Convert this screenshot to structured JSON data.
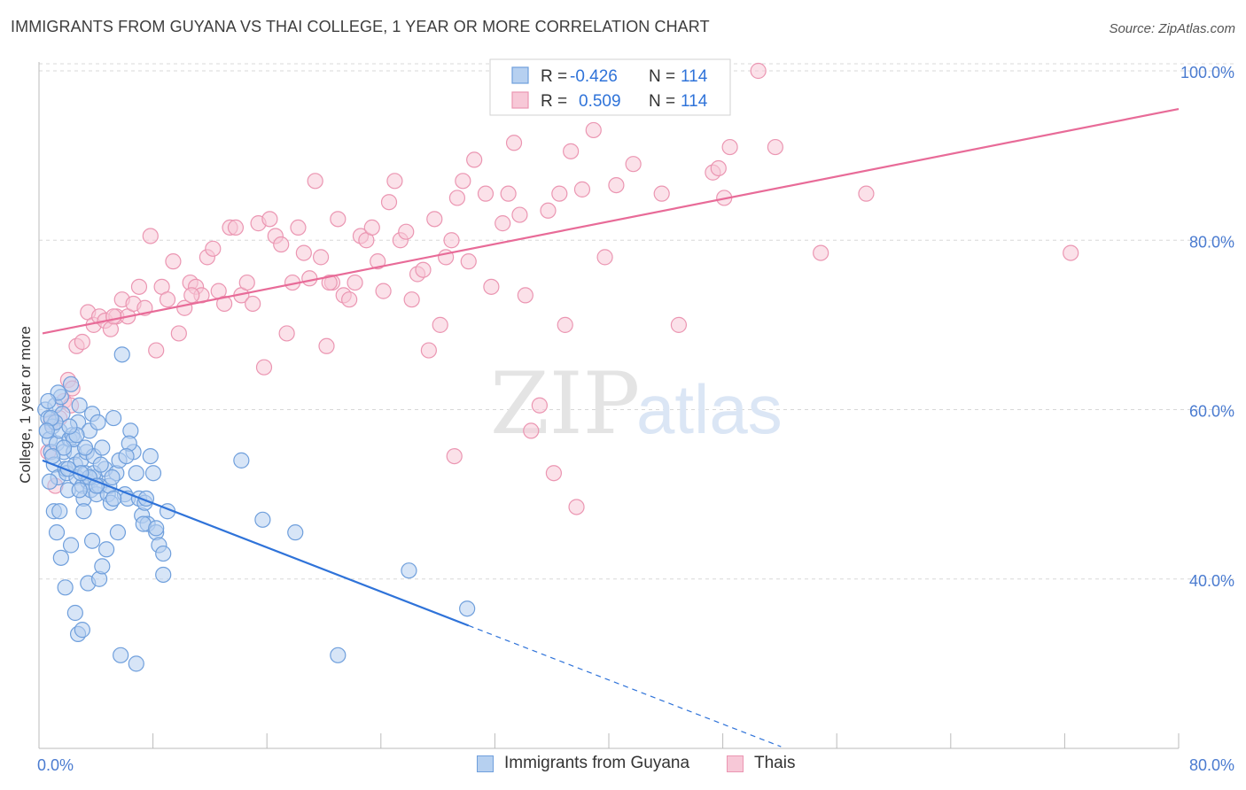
{
  "title": "IMMIGRANTS FROM GUYANA VS THAI COLLEGE, 1 YEAR OR MORE CORRELATION CHART",
  "source": "Source: ZipAtlas.com",
  "watermark": {
    "zip": "ZIP",
    "atlas": "atlas"
  },
  "colors": {
    "blue_fill": "#b6d0f0",
    "blue_stroke": "#6f9fdc",
    "blue_line": "#2f73d9",
    "pink_fill": "#f7c8d7",
    "pink_stroke": "#eb96b2",
    "pink_line": "#e86b98",
    "axis_text": "#4a7bd0",
    "grid": "#d8d8d8"
  },
  "legend": {
    "rows": [
      {
        "r_label": "R =",
        "r_value": "-0.426",
        "n_label": "N =",
        "n_value": "114"
      },
      {
        "r_label": "R =",
        "r_value": "0.509",
        "n_label": "N =",
        "n_value": "114"
      }
    ]
  },
  "bottom_legend": [
    {
      "label": "Immigrants from Guyana"
    },
    {
      "label": "Thais"
    }
  ],
  "chart_data": {
    "type": "scatter",
    "xlabel": "",
    "ylabel": "College, 1 year or more",
    "xlim": [
      0,
      80
    ],
    "ylim": [
      20,
      103
    ],
    "x_tick_labels": [
      "0.0%",
      "80.0%"
    ],
    "y_ticks": [
      40,
      60,
      80,
      100
    ],
    "y_tick_labels": [
      "40.0%",
      "60.0%",
      "80.0%",
      "100.0%"
    ],
    "grid": true,
    "legend_position": "top-center",
    "series": [
      {
        "name": "Immigrants from Guyana",
        "color": "blue",
        "trend": {
          "x0": 0,
          "y0": 54.0,
          "x1": 30,
          "y1": 34.5,
          "dash_to_x": 52
        },
        "points": [
          [
            0.2,
            60.0
          ],
          [
            0.3,
            57.5
          ],
          [
            0.4,
            59.0
          ],
          [
            0.5,
            56.5
          ],
          [
            0.6,
            55.0
          ],
          [
            0.7,
            58.0
          ],
          [
            0.8,
            53.5
          ],
          [
            0.9,
            60.5
          ],
          [
            1.0,
            56.0
          ],
          [
            1.1,
            52.0
          ],
          [
            0.5,
            51.5
          ],
          [
            0.8,
            48.0
          ],
          [
            1.2,
            57.5
          ],
          [
            1.3,
            61.5
          ],
          [
            1.4,
            59.5
          ],
          [
            1.5,
            55.0
          ],
          [
            1.6,
            53.0
          ],
          [
            1.7,
            52.5
          ],
          [
            1.8,
            50.5
          ],
          [
            1.9,
            56.5
          ],
          [
            2.0,
            63.0
          ],
          [
            2.1,
            57.0
          ],
          [
            2.2,
            55.0
          ],
          [
            2.3,
            53.5
          ],
          [
            2.4,
            52.0
          ],
          [
            2.5,
            58.5
          ],
          [
            2.6,
            60.5
          ],
          [
            2.7,
            54.0
          ],
          [
            2.8,
            51.0
          ],
          [
            2.9,
            49.5
          ],
          [
            3.0,
            52.5
          ],
          [
            3.1,
            55.0
          ],
          [
            3.2,
            51.5
          ],
          [
            3.3,
            57.5
          ],
          [
            3.4,
            50.5
          ],
          [
            3.5,
            59.5
          ],
          [
            3.6,
            54.5
          ],
          [
            3.7,
            52.0
          ],
          [
            3.8,
            50.0
          ],
          [
            3.9,
            58.5
          ],
          [
            4.0,
            51.0
          ],
          [
            4.2,
            55.5
          ],
          [
            4.4,
            53.0
          ],
          [
            4.6,
            50.0
          ],
          [
            4.8,
            49.0
          ],
          [
            5.0,
            59.0
          ],
          [
            5.2,
            52.5
          ],
          [
            5.4,
            54.0
          ],
          [
            5.6,
            66.5
          ],
          [
            5.8,
            50.0
          ],
          [
            6.0,
            49.5
          ],
          [
            6.2,
            57.5
          ],
          [
            6.4,
            55.0
          ],
          [
            6.6,
            52.5
          ],
          [
            6.8,
            49.5
          ],
          [
            7.0,
            47.5
          ],
          [
            7.2,
            49.0
          ],
          [
            7.4,
            46.5
          ],
          [
            7.6,
            54.5
          ],
          [
            7.8,
            52.5
          ],
          [
            8.0,
            45.5
          ],
          [
            8.2,
            44.0
          ],
          [
            8.5,
            43.0
          ],
          [
            8.8,
            48.0
          ],
          [
            1.0,
            45.5
          ],
          [
            1.3,
            42.5
          ],
          [
            1.6,
            39.0
          ],
          [
            2.0,
            44.0
          ],
          [
            2.3,
            36.0
          ],
          [
            2.5,
            33.5
          ],
          [
            2.8,
            34.0
          ],
          [
            3.2,
            39.5
          ],
          [
            3.5,
            44.5
          ],
          [
            4.0,
            40.0
          ],
          [
            4.2,
            41.5
          ],
          [
            4.5,
            43.5
          ],
          [
            5.3,
            45.5
          ],
          [
            5.5,
            31.0
          ],
          [
            6.6,
            30.0
          ],
          [
            8.5,
            40.5
          ],
          [
            14.0,
            54.0
          ],
          [
            15.5,
            47.0
          ],
          [
            17.8,
            45.5
          ],
          [
            25.8,
            41.0
          ],
          [
            29.9,
            36.5
          ],
          [
            20.8,
            31.0
          ],
          [
            1.2,
            48.0
          ],
          [
            2.9,
            48.0
          ],
          [
            3.6,
            52.5
          ],
          [
            4.7,
            51.0
          ],
          [
            5.0,
            49.5
          ],
          [
            6.1,
            56.0
          ],
          [
            7.1,
            46.5
          ],
          [
            0.9,
            58.5
          ],
          [
            1.1,
            62.0
          ],
          [
            2.2,
            56.5
          ],
          [
            3.0,
            55.5
          ],
          [
            0.4,
            61.0
          ],
          [
            0.6,
            59.0
          ],
          [
            1.5,
            55.5
          ],
          [
            2.4,
            57.0
          ],
          [
            3.3,
            52.0
          ],
          [
            4.1,
            53.5
          ],
          [
            0.3,
            57.5
          ],
          [
            0.7,
            54.5
          ],
          [
            1.8,
            53.0
          ],
          [
            2.7,
            52.5
          ],
          [
            3.8,
            51.0
          ],
          [
            4.9,
            52.0
          ],
          [
            5.9,
            54.5
          ],
          [
            7.3,
            49.5
          ],
          [
            8.0,
            46.0
          ],
          [
            1.9,
            58.0
          ],
          [
            2.6,
            50.5
          ]
        ]
      },
      {
        "name": "Thais",
        "color": "pink",
        "trend": {
          "x0": 0,
          "y0": 69.0,
          "x1": 80,
          "y1": 95.5
        },
        "points": [
          [
            0.4,
            55.0
          ],
          [
            0.6,
            58.5
          ],
          [
            0.9,
            51.0
          ],
          [
            1.2,
            59.0
          ],
          [
            1.5,
            61.0
          ],
          [
            1.8,
            63.5
          ],
          [
            2.1,
            62.5
          ],
          [
            2.4,
            67.5
          ],
          [
            2.8,
            68.0
          ],
          [
            3.2,
            71.5
          ],
          [
            3.6,
            70.0
          ],
          [
            4.0,
            71.0
          ],
          [
            4.4,
            70.5
          ],
          [
            4.8,
            69.5
          ],
          [
            5.2,
            71.0
          ],
          [
            5.6,
            73.0
          ],
          [
            6.0,
            71.0
          ],
          [
            6.4,
            72.5
          ],
          [
            6.8,
            74.5
          ],
          [
            7.2,
            72.0
          ],
          [
            7.6,
            80.5
          ],
          [
            8.0,
            67.0
          ],
          [
            8.4,
            74.5
          ],
          [
            8.8,
            73.0
          ],
          [
            9.2,
            77.5
          ],
          [
            9.6,
            69.0
          ],
          [
            10.0,
            72.0
          ],
          [
            10.4,
            75.0
          ],
          [
            10.8,
            74.5
          ],
          [
            11.2,
            73.5
          ],
          [
            11.6,
            78.0
          ],
          [
            12.0,
            79.0
          ],
          [
            12.4,
            74.0
          ],
          [
            12.8,
            72.5
          ],
          [
            13.2,
            81.5
          ],
          [
            13.6,
            81.5
          ],
          [
            14.0,
            73.5
          ],
          [
            14.4,
            75.0
          ],
          [
            14.8,
            72.5
          ],
          [
            15.2,
            82.0
          ],
          [
            15.6,
            65.0
          ],
          [
            16.0,
            82.5
          ],
          [
            16.4,
            80.5
          ],
          [
            16.8,
            79.5
          ],
          [
            17.2,
            69.0
          ],
          [
            17.6,
            75.0
          ],
          [
            18.0,
            81.5
          ],
          [
            18.4,
            78.5
          ],
          [
            18.8,
            75.5
          ],
          [
            19.2,
            87.0
          ],
          [
            19.6,
            78.0
          ],
          [
            20.0,
            67.5
          ],
          [
            20.4,
            75.0
          ],
          [
            20.8,
            82.5
          ],
          [
            21.2,
            73.5
          ],
          [
            21.6,
            73.0
          ],
          [
            22.0,
            75.0
          ],
          [
            22.4,
            80.5
          ],
          [
            22.8,
            80.0
          ],
          [
            23.2,
            81.5
          ],
          [
            23.6,
            77.5
          ],
          [
            24.0,
            74.0
          ],
          [
            24.4,
            84.5
          ],
          [
            24.8,
            87.0
          ],
          [
            25.2,
            80.0
          ],
          [
            25.6,
            81.0
          ],
          [
            26.0,
            73.0
          ],
          [
            26.4,
            76.0
          ],
          [
            26.8,
            76.5
          ],
          [
            27.2,
            67.0
          ],
          [
            27.6,
            82.5
          ],
          [
            28.0,
            70.0
          ],
          [
            28.4,
            78.0
          ],
          [
            28.8,
            80.0
          ],
          [
            29.2,
            85.0
          ],
          [
            29.6,
            87.0
          ],
          [
            30.0,
            77.5
          ],
          [
            30.4,
            89.5
          ],
          [
            31.2,
            85.5
          ],
          [
            31.6,
            74.5
          ],
          [
            32.4,
            82.0
          ],
          [
            32.8,
            85.5
          ],
          [
            33.2,
            91.5
          ],
          [
            33.6,
            83.0
          ],
          [
            34.0,
            73.5
          ],
          [
            34.4,
            57.5
          ],
          [
            35.0,
            60.5
          ],
          [
            35.6,
            83.5
          ],
          [
            36.0,
            52.5
          ],
          [
            36.4,
            85.5
          ],
          [
            36.8,
            70.0
          ],
          [
            37.2,
            90.5
          ],
          [
            37.6,
            48.5
          ],
          [
            38.0,
            86.0
          ],
          [
            38.8,
            93.0
          ],
          [
            39.6,
            78.0
          ],
          [
            40.4,
            86.5
          ],
          [
            41.6,
            89.0
          ],
          [
            43.6,
            85.5
          ],
          [
            44.8,
            70.0
          ],
          [
            47.2,
            88.0
          ],
          [
            47.6,
            88.5
          ],
          [
            48.0,
            85.0
          ],
          [
            48.4,
            91.0
          ],
          [
            50.4,
            100.0
          ],
          [
            51.6,
            91.0
          ],
          [
            54.8,
            78.5
          ],
          [
            58.0,
            85.5
          ],
          [
            72.4,
            78.5
          ],
          [
            29.0,
            54.5
          ],
          [
            20.2,
            75.0
          ],
          [
            10.5,
            73.5
          ],
          [
            5.0,
            71.0
          ],
          [
            2.0,
            60.5
          ]
        ]
      }
    ]
  }
}
